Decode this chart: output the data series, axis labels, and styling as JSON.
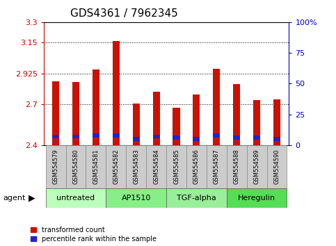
{
  "title": "GDS4361 / 7962345",
  "samples": [
    "GSM554579",
    "GSM554580",
    "GSM554581",
    "GSM554582",
    "GSM554583",
    "GSM554584",
    "GSM554585",
    "GSM554586",
    "GSM554587",
    "GSM554588",
    "GSM554589",
    "GSM554590"
  ],
  "red_values": [
    2.865,
    2.863,
    2.955,
    3.16,
    2.705,
    2.79,
    2.675,
    2.77,
    2.96,
    2.845,
    2.73,
    2.735
  ],
  "blue_values_pct": [
    7,
    7,
    8,
    8,
    5,
    7,
    6,
    5,
    8,
    6,
    6,
    5
  ],
  "ymin": 2.4,
  "ymax": 3.3,
  "yticks_left": [
    2.4,
    2.7,
    2.925,
    3.15,
    3.3
  ],
  "yticks_right": [
    0,
    25,
    50,
    75,
    100
  ],
  "left_axis_color": "#cc0000",
  "right_axis_color": "#0000bb",
  "bar_color_red": "#cc1100",
  "bar_color_blue": "#2222cc",
  "groups": [
    {
      "label": "untreated",
      "indices": [
        0,
        1,
        2
      ],
      "color": "#bbffbb"
    },
    {
      "label": "AP1510",
      "indices": [
        3,
        4,
        5
      ],
      "color": "#88ee88"
    },
    {
      "label": "TGF-alpha",
      "indices": [
        6,
        7,
        8
      ],
      "color": "#99ee99"
    },
    {
      "label": "Heregulin",
      "indices": [
        9,
        10,
        11
      ],
      "color": "#55dd55"
    }
  ],
  "bar_width": 0.35,
  "tick_fontsize": 8,
  "sample_fontsize": 6,
  "group_fontsize": 8,
  "title_fontsize": 11,
  "agent_label": "agent",
  "legend_red": "transformed count",
  "legend_blue": "percentile rank within the sample"
}
